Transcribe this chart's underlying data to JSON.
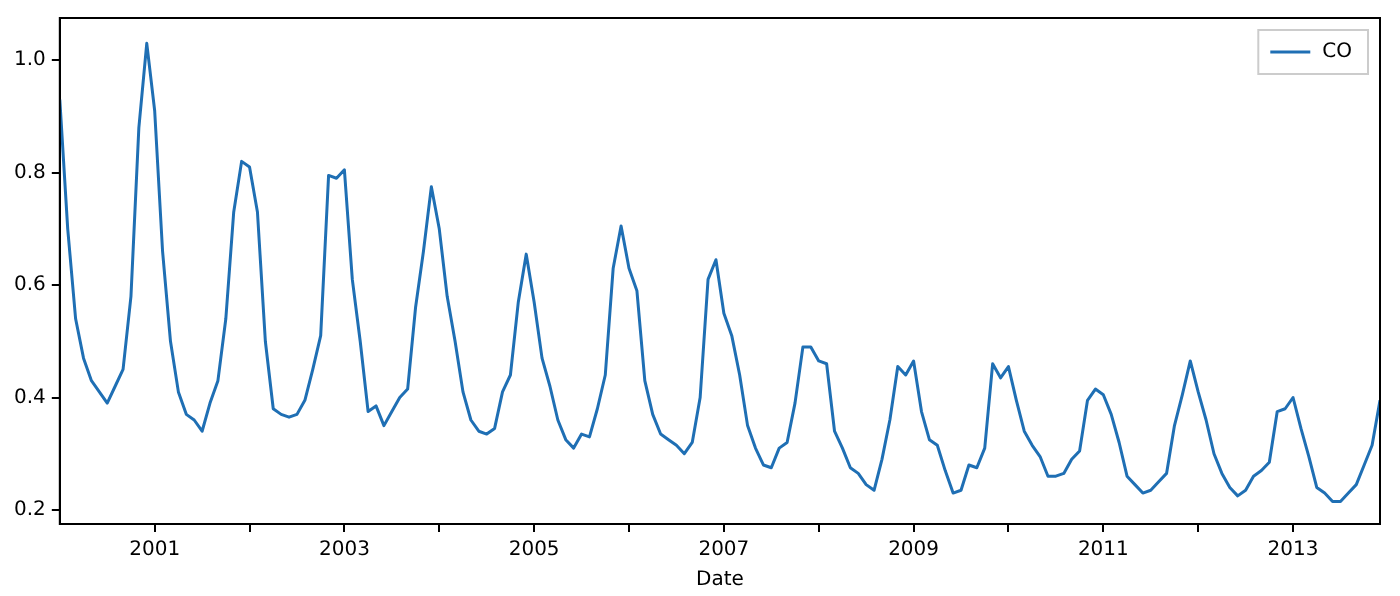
{
  "chart_data": {
    "type": "line",
    "xlabel": "Date",
    "legend": "top right",
    "marker": "none",
    "line_style": "solid",
    "x": [
      "2000-01",
      "2000-02",
      "2000-03",
      "2000-04",
      "2000-05",
      "2000-06",
      "2000-07",
      "2000-08",
      "2000-09",
      "2000-10",
      "2000-11",
      "2000-12",
      "2001-01",
      "2001-02",
      "2001-03",
      "2001-04",
      "2001-05",
      "2001-06",
      "2001-07",
      "2001-08",
      "2001-09",
      "2001-10",
      "2001-11",
      "2001-12",
      "2002-01",
      "2002-02",
      "2002-03",
      "2002-04",
      "2002-05",
      "2002-06",
      "2002-07",
      "2002-08",
      "2002-09",
      "2002-10",
      "2002-11",
      "2002-12",
      "2003-01",
      "2003-02",
      "2003-03",
      "2003-04",
      "2003-05",
      "2003-06",
      "2003-07",
      "2003-08",
      "2003-09",
      "2003-10",
      "2003-11",
      "2003-12",
      "2004-01",
      "2004-02",
      "2004-03",
      "2004-04",
      "2004-05",
      "2004-06",
      "2004-07",
      "2004-08",
      "2004-09",
      "2004-10",
      "2004-11",
      "2004-12",
      "2005-01",
      "2005-02",
      "2005-03",
      "2005-04",
      "2005-05",
      "2005-06",
      "2005-07",
      "2005-08",
      "2005-09",
      "2005-10",
      "2005-11",
      "2005-12",
      "2006-01",
      "2006-02",
      "2006-03",
      "2006-04",
      "2006-05",
      "2006-06",
      "2006-07",
      "2006-08",
      "2006-09",
      "2006-10",
      "2006-11",
      "2006-12",
      "2007-01",
      "2007-02",
      "2007-03",
      "2007-04",
      "2007-05",
      "2007-06",
      "2007-07",
      "2007-08",
      "2007-09",
      "2007-10",
      "2007-11",
      "2007-12",
      "2008-01",
      "2008-02",
      "2008-03",
      "2008-04",
      "2008-05",
      "2008-06",
      "2008-07",
      "2008-08",
      "2008-09",
      "2008-10",
      "2008-11",
      "2008-12",
      "2009-01",
      "2009-02",
      "2009-03",
      "2009-04",
      "2009-05",
      "2009-06",
      "2009-07",
      "2009-08",
      "2009-09",
      "2009-10",
      "2009-11",
      "2009-12",
      "2010-01",
      "2010-02",
      "2010-03",
      "2010-04",
      "2010-05",
      "2010-06",
      "2010-07",
      "2010-08",
      "2010-09",
      "2010-10",
      "2010-11",
      "2010-12",
      "2011-01",
      "2011-02",
      "2011-03",
      "2011-04",
      "2011-05",
      "2011-06",
      "2011-07",
      "2011-08",
      "2011-09",
      "2011-10",
      "2011-11",
      "2011-12",
      "2012-01",
      "2012-02",
      "2012-03",
      "2012-04",
      "2012-05",
      "2012-06",
      "2012-07",
      "2012-08",
      "2012-09",
      "2012-10",
      "2012-11",
      "2012-12",
      "2013-01",
      "2013-02",
      "2013-03",
      "2013-04",
      "2013-05",
      "2013-06",
      "2013-07",
      "2013-08",
      "2013-09",
      "2013-10",
      "2013-11",
      "2013-12"
    ],
    "series": [
      {
        "name": "CO",
        "color": "#1f6fb4",
        "values": [
          0.93,
          0.7,
          0.54,
          0.47,
          0.43,
          0.41,
          0.39,
          0.42,
          0.45,
          0.58,
          0.88,
          1.03,
          0.91,
          0.66,
          0.5,
          0.41,
          0.37,
          0.36,
          0.34,
          0.39,
          0.43,
          0.54,
          0.73,
          0.82,
          0.81,
          0.73,
          0.5,
          0.38,
          0.37,
          0.365,
          0.37,
          0.395,
          0.45,
          0.51,
          0.795,
          0.79,
          0.805,
          0.61,
          0.5,
          0.375,
          0.385,
          0.35,
          0.375,
          0.4,
          0.415,
          0.56,
          0.66,
          0.775,
          0.7,
          0.58,
          0.5,
          0.41,
          0.36,
          0.34,
          0.335,
          0.345,
          0.41,
          0.44,
          0.57,
          0.655,
          0.57,
          0.47,
          0.42,
          0.36,
          0.325,
          0.31,
          0.335,
          0.33,
          0.38,
          0.44,
          0.63,
          0.705,
          0.63,
          0.59,
          0.43,
          0.37,
          0.335,
          0.325,
          0.315,
          0.3,
          0.32,
          0.4,
          0.61,
          0.645,
          0.55,
          0.51,
          0.44,
          0.35,
          0.31,
          0.28,
          0.275,
          0.31,
          0.32,
          0.39,
          0.49,
          0.49,
          0.465,
          0.46,
          0.34,
          0.31,
          0.275,
          0.265,
          0.245,
          0.235,
          0.29,
          0.36,
          0.455,
          0.44,
          0.465,
          0.375,
          0.325,
          0.315,
          0.27,
          0.23,
          0.235,
          0.28,
          0.275,
          0.31,
          0.46,
          0.435,
          0.455,
          0.395,
          0.34,
          0.315,
          0.295,
          0.26,
          0.26,
          0.265,
          0.29,
          0.305,
          0.395,
          0.415,
          0.405,
          0.37,
          0.32,
          0.26,
          0.245,
          0.23,
          0.235,
          0.25,
          0.265,
          0.35,
          0.405,
          0.465,
          0.41,
          0.36,
          0.3,
          0.265,
          0.24,
          0.225,
          0.235,
          0.26,
          0.27,
          0.285,
          0.375,
          0.38,
          0.4,
          0.345,
          0.295,
          0.24,
          0.23,
          0.215,
          0.215,
          0.23,
          0.245,
          0.28,
          0.315,
          0.395
        ]
      }
    ],
    "xlim": [
      "2000-01",
      "2013-12"
    ],
    "xticks": [
      {
        "value": "2001",
        "label": "2001"
      },
      {
        "value": "2002",
        "label": null
      },
      {
        "value": "2003",
        "label": "2003"
      },
      {
        "value": "2004",
        "label": null
      },
      {
        "value": "2005",
        "label": "2005"
      },
      {
        "value": "2006",
        "label": null
      },
      {
        "value": "2007",
        "label": "2007"
      },
      {
        "value": "2008",
        "label": null
      },
      {
        "value": "2009",
        "label": "2009"
      },
      {
        "value": "2010",
        "label": null
      },
      {
        "value": "2011",
        "label": "2011"
      },
      {
        "value": "2012",
        "label": null
      },
      {
        "value": "2013",
        "label": "2013"
      }
    ],
    "ylim": [
      0.175,
      1.075
    ],
    "yticks": [
      0.2,
      0.4,
      0.6,
      0.8,
      {
        "value": 1.0,
        "label": "1.0"
      }
    ]
  }
}
